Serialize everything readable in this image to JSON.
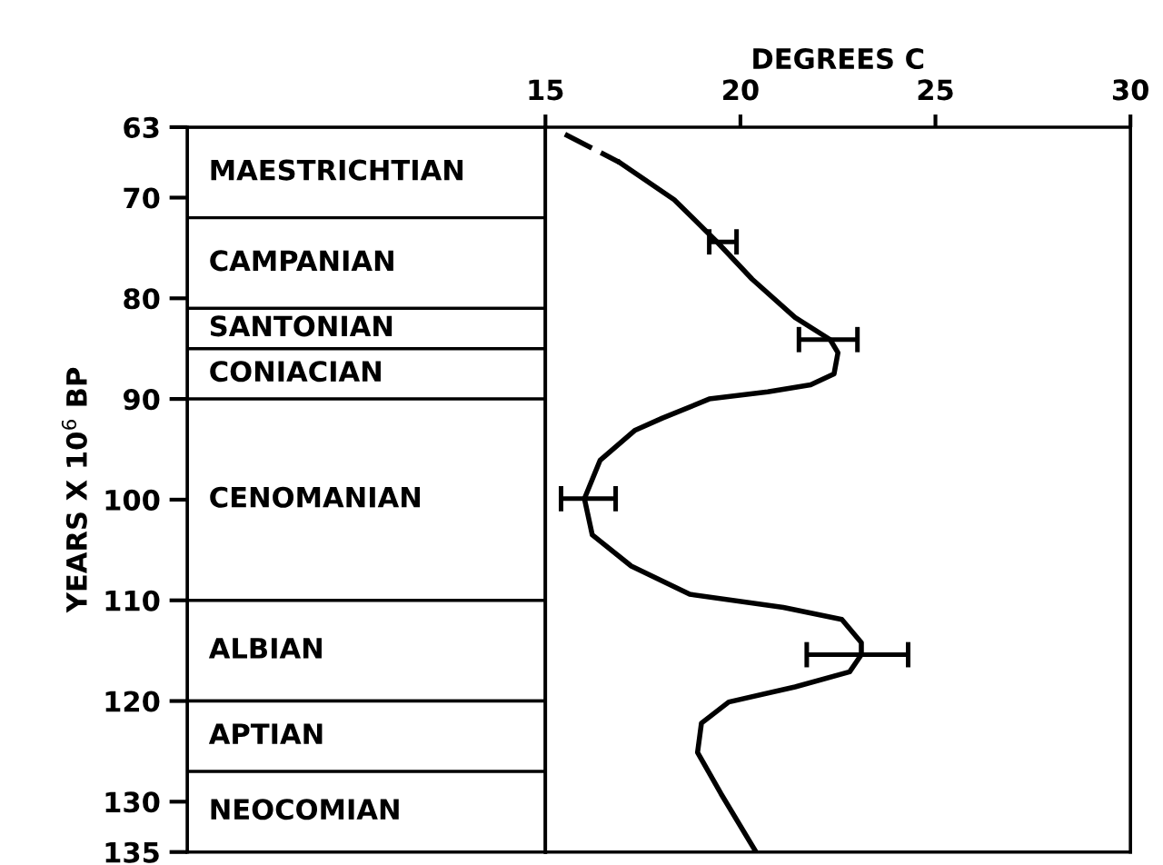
{
  "chart_data": [
    {
      "type": "bar",
      "categories": [
        null
      ],
      "ylabel": "YEARS X 10$^{6}$ BP",
      "ylim": [
        135,
        63
      ],
      "yticks": [
        63,
        70,
        80,
        90,
        100,
        110,
        120,
        130,
        135
      ],
      "tick_labels": "y",
      "series": [
        {
          "name": "MAESTRICHTIAN",
          "color": "#ffffff",
          "base": [
            63
          ],
          "values": [
            9
          ]
        },
        {
          "name": "CAMPANIAN",
          "color": "#ffffff",
          "base": [
            72
          ],
          "values": [
            9
          ]
        },
        {
          "name": "SANTONIAN",
          "color": "#ffffff",
          "base": [
            81
          ],
          "values": [
            4
          ]
        },
        {
          "name": "CONIACIAN",
          "color": "#ffffff",
          "base": [
            85
          ],
          "values": [
            5
          ]
        },
        {
          "name": "CENOMANIAN",
          "color": "#ffffff",
          "base": [
            90
          ],
          "values": [
            20
          ]
        },
        {
          "name": "ALBIAN",
          "color": "#ffffff",
          "base": [
            110
          ],
          "values": [
            10
          ]
        },
        {
          "name": "APTIAN",
          "color": "#ffffff",
          "base": [
            120
          ],
          "values": [
            7
          ]
        },
        {
          "name": "NEOCOMIAN",
          "color": "#ffffff",
          "base": [
            127
          ],
          "values": [
            8
          ]
        }
      ]
    },
    {
      "type": "line",
      "xlabel": "DEGREES C",
      "xlim": [
        15,
        30
      ],
      "xticks": [
        15,
        20,
        25,
        30
      ],
      "ylim": [
        135,
        63
      ],
      "tick_labels": "x",
      "series": [
        {
          "color": "#000000",
          "line_style": "dashed",
          "x": [
            15.5,
            16.9
          ],
          "values": [
            63.7,
            66.5
          ]
        },
        {
          "color": "#000000",
          "line_style": "solid",
          "x": [
            16.9,
            18.3,
            19.4,
            20.3,
            21.4,
            22.3,
            22.5,
            22.4,
            21.8,
            20.7,
            19.2,
            18.0,
            17.3,
            16.4,
            16.0,
            16.2,
            17.2,
            18.7,
            21.1,
            22.6,
            23.1,
            23.1,
            22.8,
            21.4,
            19.7,
            19.0,
            18.9,
            19.5,
            20.4
          ],
          "values": [
            66.5,
            70.2,
            74.4,
            78.1,
            81.9,
            84.1,
            85.4,
            87.5,
            88.6,
            89.3,
            90.0,
            91.9,
            93.1,
            96.1,
            99.9,
            103.5,
            106.6,
            109.4,
            110.7,
            111.9,
            114.2,
            115.4,
            117.1,
            118.6,
            120.1,
            122.2,
            125.1,
            129.2,
            135
          ],
          "xerrors": [
            null,
            null,
            [
              19.2,
              19.9
            ],
            null,
            null,
            [
              21.5,
              23.0
            ],
            null,
            null,
            null,
            null,
            null,
            null,
            null,
            null,
            [
              15.4,
              16.8
            ],
            null,
            null,
            null,
            null,
            null,
            null,
            [
              21.7,
              24.3
            ],
            null,
            null,
            null,
            null,
            null,
            null,
            null
          ]
        }
      ]
    }
  ]
}
